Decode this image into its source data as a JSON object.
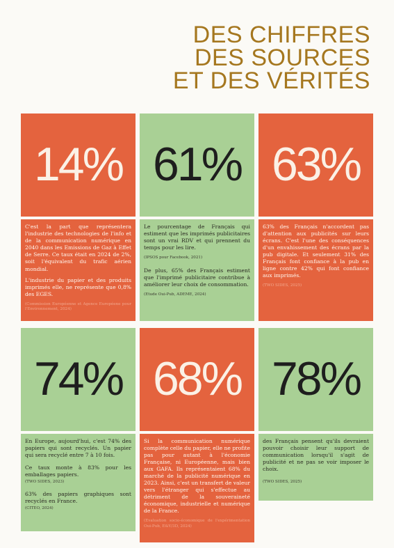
{
  "title": [
    "DES CHIFFRES",
    "DES SOURCES",
    "ET DES VÉRITÉS"
  ],
  "cells": [
    {
      "pct": "14%",
      "paragraphs": [
        "C'est la part que représentera l'industrie des technologies de l'info et de la communication numérique en 2040 dans les Emissions de Gaz à Effet de Serre. Ce taux était en 2024 de 2%, soit l'équivalent du trafic aérien mondial.",
        "L'industrie du papier et des produits imprimés elle, ne représente que 0,8% des EGES."
      ],
      "sources": [
        "(Commission Européenne et Agence Européene pour l'Environnement, 2024)"
      ]
    },
    {
      "pct": "61%",
      "paragraphs": [
        "Le pourcentage de Français qui estiment que les imprimés publicitaires sont un vrai RDV et qui prennent du temps pour les lire.",
        "(IPSOS pour Facebook, 2021)",
        "De plus, 65% des Français estiment que l'imprimé publicitaire contribue à améliorer leur choix de consommation.",
        "(Etude Oui-Pub, ADEME, 2024)"
      ]
    },
    {
      "pct": "63%",
      "paragraphs": [
        "63% des Français n'accordent pas d'attention aux publicités sur leurs écrans. C'est l'une des conséquences d'un envahissement des écrans par la pub digitale. Et seulement 31% des Français font confiance à la pub en ligne contre 42% qui font confiance aux imprimés."
      ],
      "sources": [
        "(TWO SIDES, 2025)"
      ]
    },
    {
      "pct": "74%",
      "paragraphs": [
        "En Europe, aujourd'hui, c'est 74% des papiers qui sont recyclés. Un papier qui sera recyclé entre 7 à 10 fois.",
        "Ce taux monte à 83% pour les emballages papiers.",
        "(TWO SIDES, 2023)",
        "63% des papiers graphiques sont recyclés en France.",
        "(CITEO, 2024)"
      ]
    },
    {
      "pct": "68%",
      "paragraphs": [
        "Si la communication numérique complète celle du papier, elle ne profite pas pour autant à l'économie Française, ni Européenne, mais bien aux GAFA. Ils représentaient 68% du marché de la publicité numérique en 2023. Ainsi, c'est un transfert de valeur vers l'étranger qui s'effectue au détriment de la souveraineté économique, industrielle et numérique de la France."
      ],
      "sources": [
        "(Evaluation socio-économique de l'expérimentation Oui-Pub, E&Y/3D, 2024)"
      ]
    },
    {
      "pct": "78%",
      "paragraphs": [
        "des Français pensent qu'ils devraient pouvoir choisir leur support de communication lorsqu'il s'agit de publicité et ne pas se voir imposer le choix.",
        "(TWO SIDES, 2025)"
      ]
    }
  ]
}
